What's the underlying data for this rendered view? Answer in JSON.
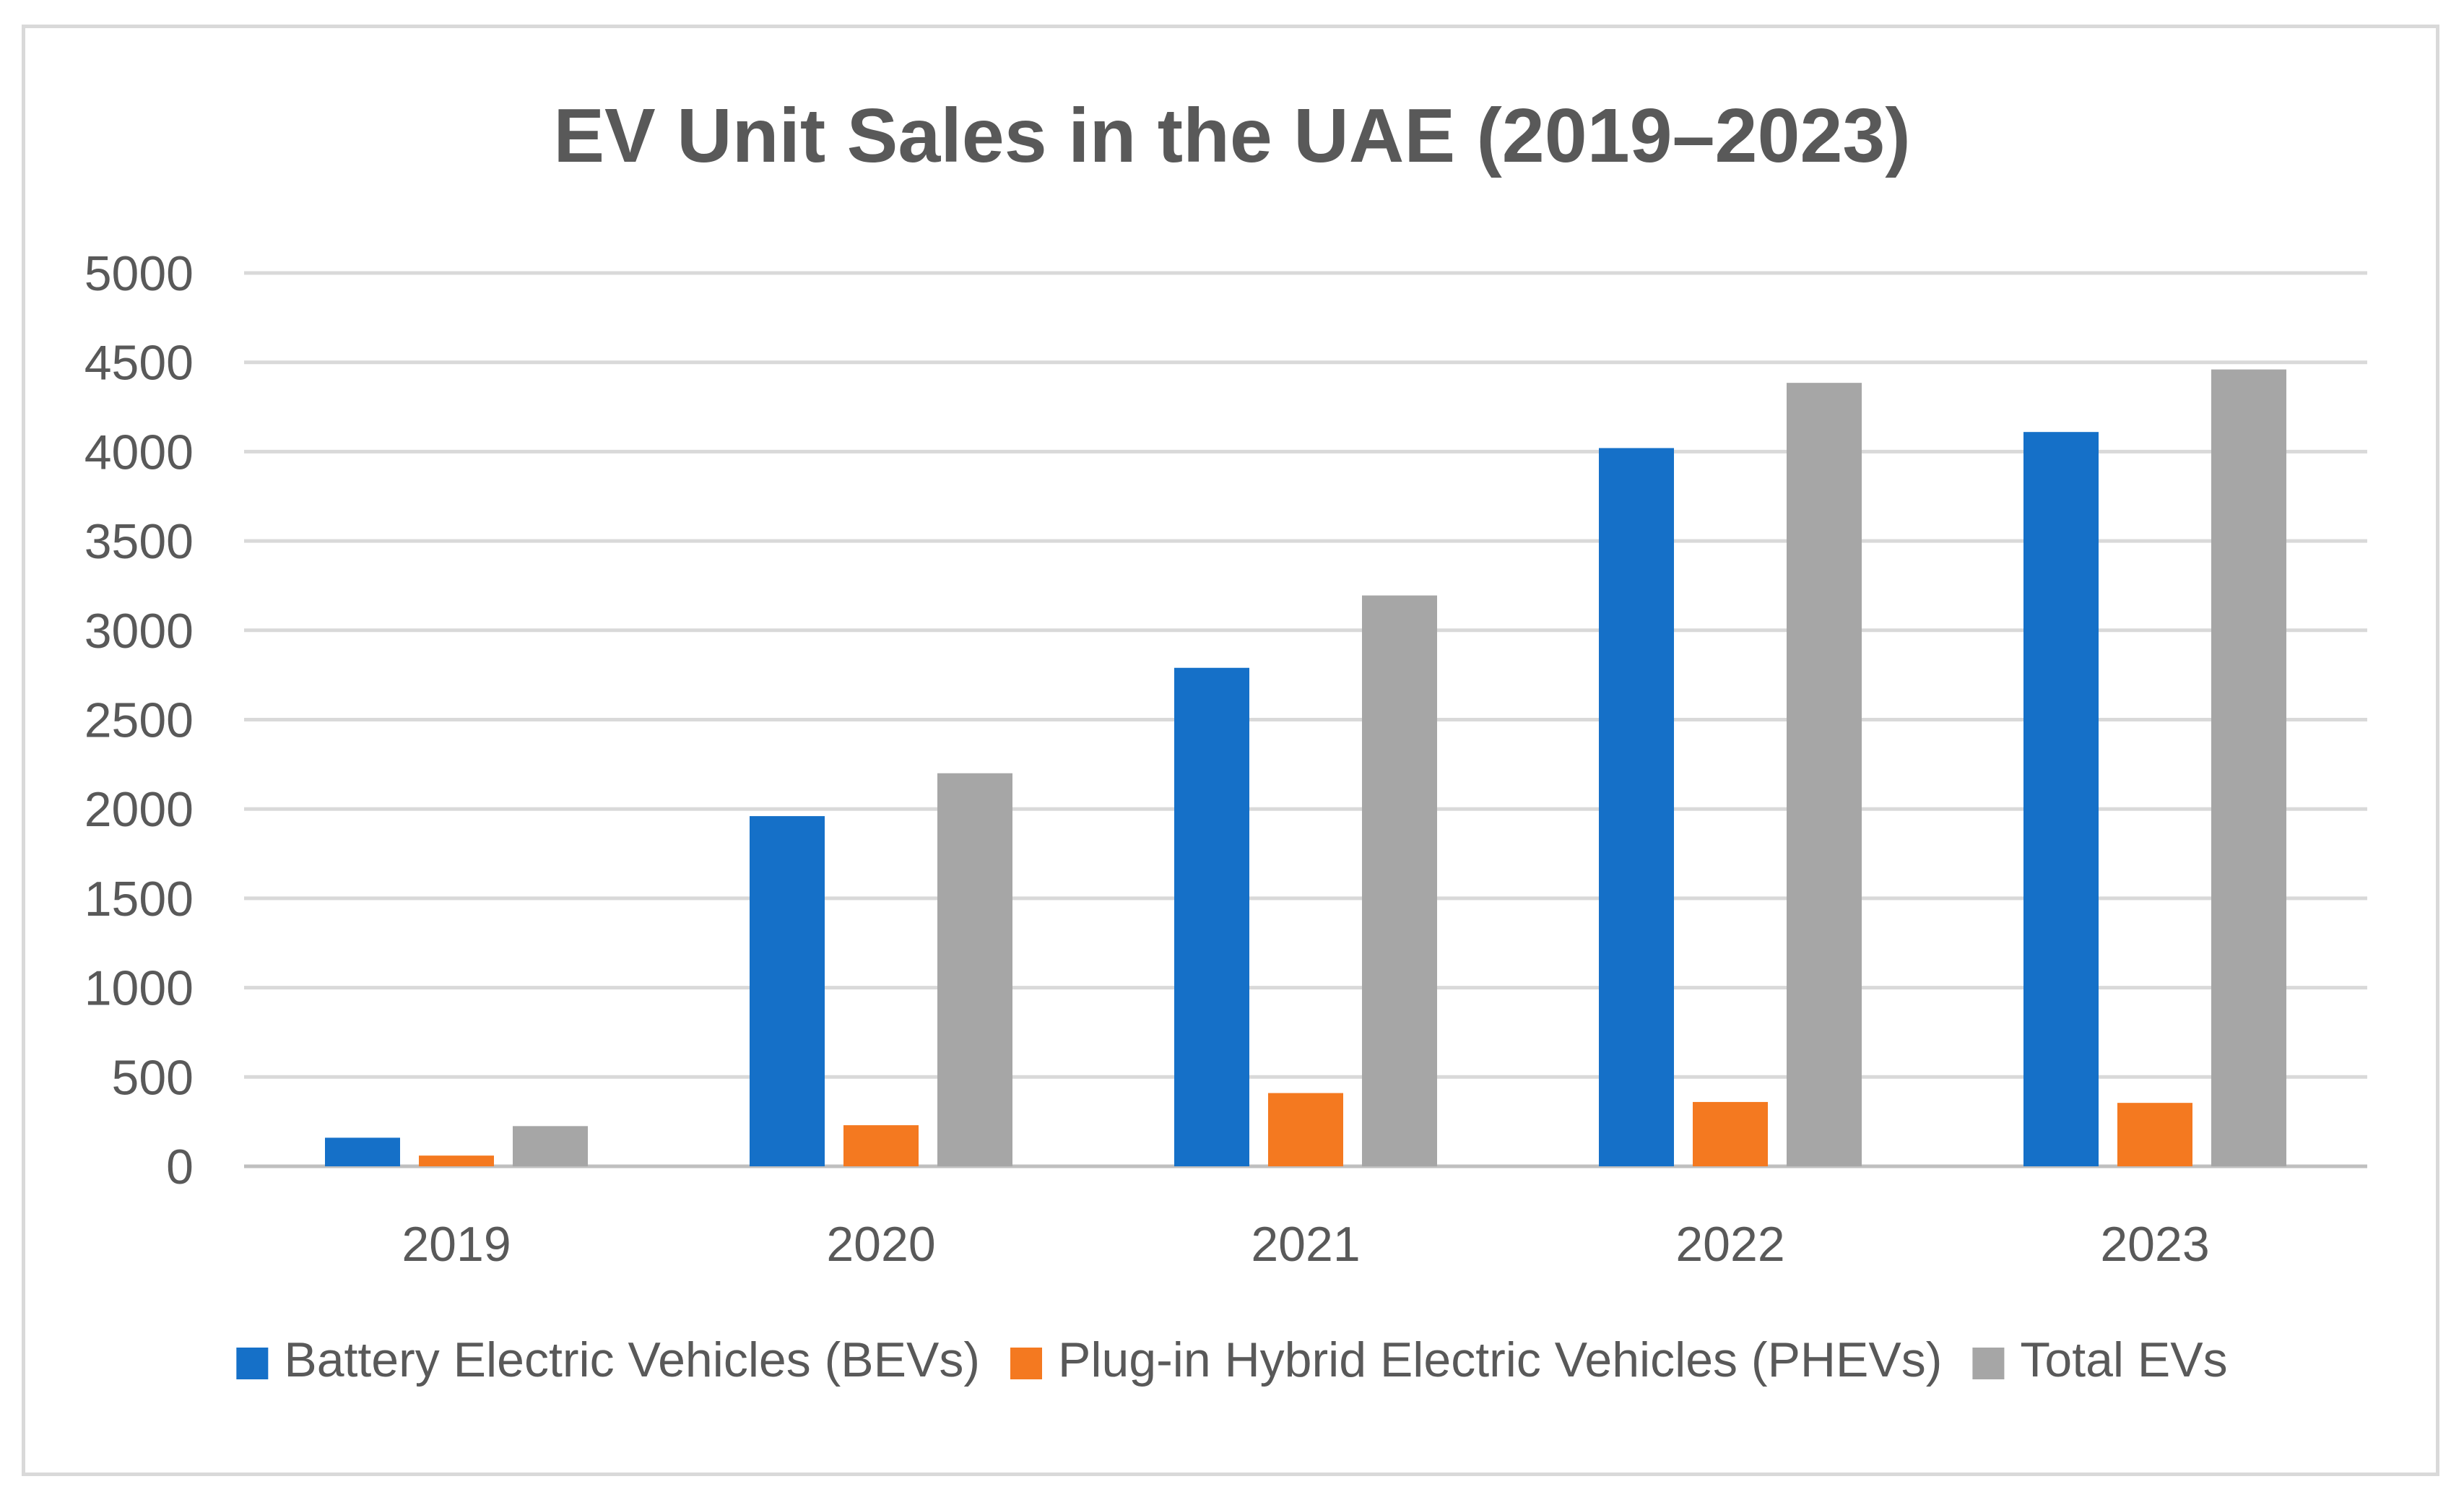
{
  "chart_data": {
    "type": "bar",
    "title": "EV Unit Sales in the UAE (2019–2023)",
    "xlabel": "",
    "ylabel": "",
    "categories": [
      "2019",
      "2020",
      "2021",
      "2022",
      "2023"
    ],
    "series": [
      {
        "name": "Battery Electric Vehicles (BEVs)",
        "color": "#1570c8",
        "values": [
          160,
          1960,
          2790,
          4020,
          4110
        ]
      },
      {
        "name": "Plug-in Hybrid Electric Vehicles (PHEVs)",
        "color": "#f47920",
        "values": [
          60,
          230,
          410,
          360,
          355
        ]
      },
      {
        "name": "Total EVs",
        "color": "#a6a6a6",
        "values": [
          225,
          2200,
          3195,
          4385,
          4460
        ]
      }
    ],
    "ylim": [
      0,
      5000
    ],
    "yticks": [
      0,
      500,
      1000,
      1500,
      2000,
      2500,
      3000,
      3500,
      4000,
      4500,
      5000
    ],
    "ytick_labels": [
      "0",
      "500",
      "1000",
      "1500",
      "2000",
      "2500",
      "3000",
      "3500",
      "4000",
      "4500",
      "5000"
    ],
    "grid": true,
    "legend_position": "bottom"
  }
}
